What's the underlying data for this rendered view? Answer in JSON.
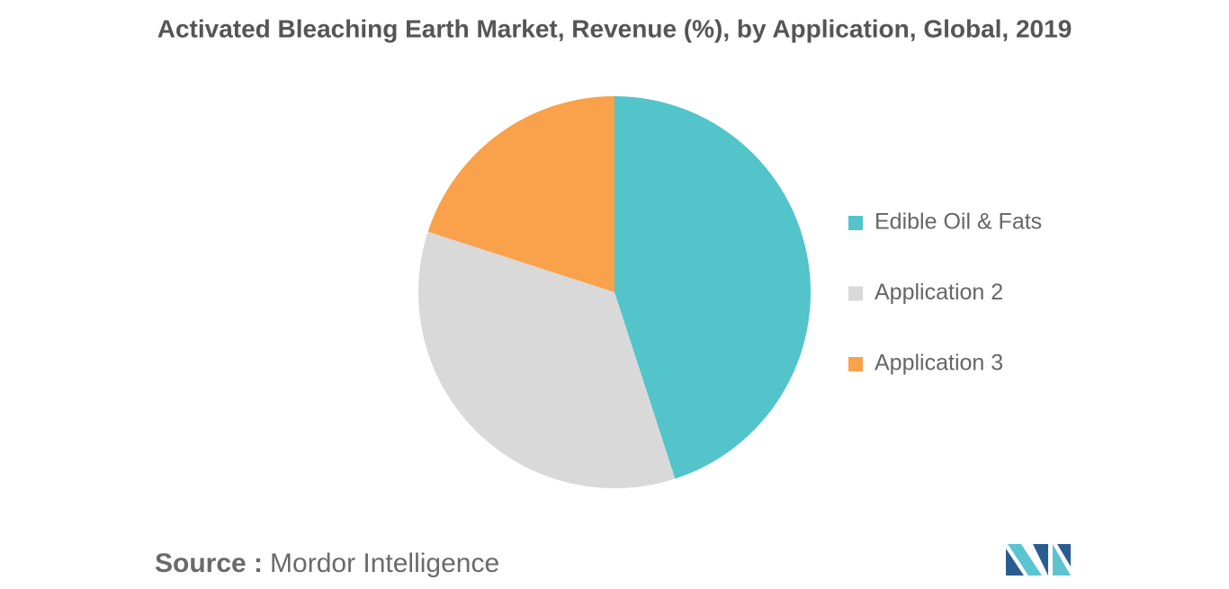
{
  "chart_data": {
    "type": "pie",
    "title": "Activated Bleaching Earth Market, Revenue (%), by Application, Global, 2019",
    "categories": [
      "Edible Oil & Fats",
      "Application 2",
      "Application 3"
    ],
    "values": [
      45,
      35,
      20
    ],
    "colors": [
      "#52c4ca",
      "#d9d9d9",
      "#f9a24b"
    ],
    "legend": "right",
    "source_label": "Source :",
    "source": "Mordor Intelligence"
  }
}
